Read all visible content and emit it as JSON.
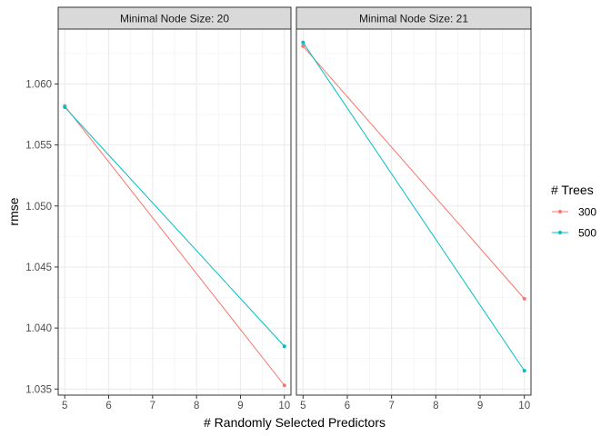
{
  "chart_data": {
    "type": "line",
    "xlabel": "# Randomly Selected Predictors",
    "ylabel": "rmse",
    "xlim": [
      4.85,
      10.15
    ],
    "ylim": [
      1.0345,
      1.0645
    ],
    "x_ticks": [
      5,
      6,
      7,
      8,
      9,
      10
    ],
    "x_tick_labels": [
      "5",
      "6",
      "7",
      "8",
      "9",
      "10"
    ],
    "y_ticks": [
      1.035,
      1.04,
      1.045,
      1.05,
      1.055,
      1.06
    ],
    "y_tick_labels": [
      "1.035",
      "1.040",
      "1.045",
      "1.050",
      "1.055",
      "1.060"
    ],
    "grid": true,
    "legend": {
      "title": "# Trees",
      "position": "right",
      "entries": [
        {
          "name": "300",
          "color": "#F8766D"
        },
        {
          "name": "500",
          "color": "#00BFC4"
        }
      ]
    },
    "panels": [
      {
        "title": "Minimal Node Size: 20",
        "series": [
          {
            "name": "300",
            "color": "#F8766D",
            "x": [
              5,
              10
            ],
            "y": [
              1.0582,
              1.0353
            ]
          },
          {
            "name": "500",
            "color": "#00BFC4",
            "x": [
              5,
              10
            ],
            "y": [
              1.0581,
              1.0385
            ]
          }
        ]
      },
      {
        "title": "Minimal Node Size: 21",
        "series": [
          {
            "name": "300",
            "color": "#F8766D",
            "x": [
              5,
              10
            ],
            "y": [
              1.0631,
              1.0424
            ]
          },
          {
            "name": "500",
            "color": "#00BFC4",
            "x": [
              5,
              10
            ],
            "y": [
              1.0634,
              1.0365
            ]
          }
        ]
      }
    ]
  }
}
